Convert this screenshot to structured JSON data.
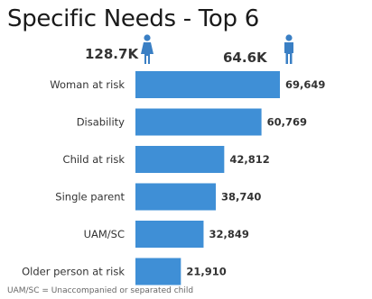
{
  "title": "Specific Needs - Top 6",
  "stats": {
    "female": {
      "value": "128.7K",
      "icon": "female-person-icon"
    },
    "male": {
      "value": "64.6K",
      "icon": "male-person-icon"
    }
  },
  "colors": {
    "bar": "#3f8fd6",
    "icon": "#3a7fc4"
  },
  "chart_data": {
    "type": "bar",
    "orientation": "horizontal",
    "categories": [
      "Woman at risk",
      "Disability",
      "Child at risk",
      "Single parent",
      "UAM/SC",
      "Older person at risk"
    ],
    "values": [
      69649,
      60769,
      42812,
      38740,
      32849,
      21910
    ],
    "value_labels": [
      "69,649",
      "60,769",
      "42,812",
      "38,740",
      "32,849",
      "21,910"
    ],
    "xlim": [
      0,
      69649
    ],
    "grid": false,
    "legend": "none"
  },
  "footnote": "UAM/SC = Unaccompanied or separated child"
}
